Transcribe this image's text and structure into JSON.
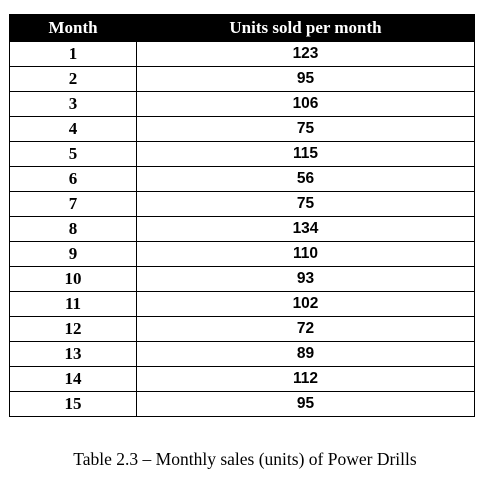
{
  "table": {
    "headers": {
      "month": "Month",
      "units": "Units sold per month"
    },
    "rows": [
      {
        "month": "1",
        "units": "123"
      },
      {
        "month": "2",
        "units": "95"
      },
      {
        "month": "3",
        "units": "106"
      },
      {
        "month": "4",
        "units": "75"
      },
      {
        "month": "5",
        "units": "115"
      },
      {
        "month": "6",
        "units": "56"
      },
      {
        "month": "7",
        "units": "75"
      },
      {
        "month": "8",
        "units": "134"
      },
      {
        "month": "9",
        "units": "110"
      },
      {
        "month": "10",
        "units": "93"
      },
      {
        "month": "11",
        "units": "102"
      },
      {
        "month": "12",
        "units": "72"
      },
      {
        "month": "13",
        "units": "89"
      },
      {
        "month": "14",
        "units": "112"
      },
      {
        "month": "15",
        "units": "95"
      }
    ]
  },
  "caption": "Table 2.3 – Monthly sales (units) of Power Drills"
}
